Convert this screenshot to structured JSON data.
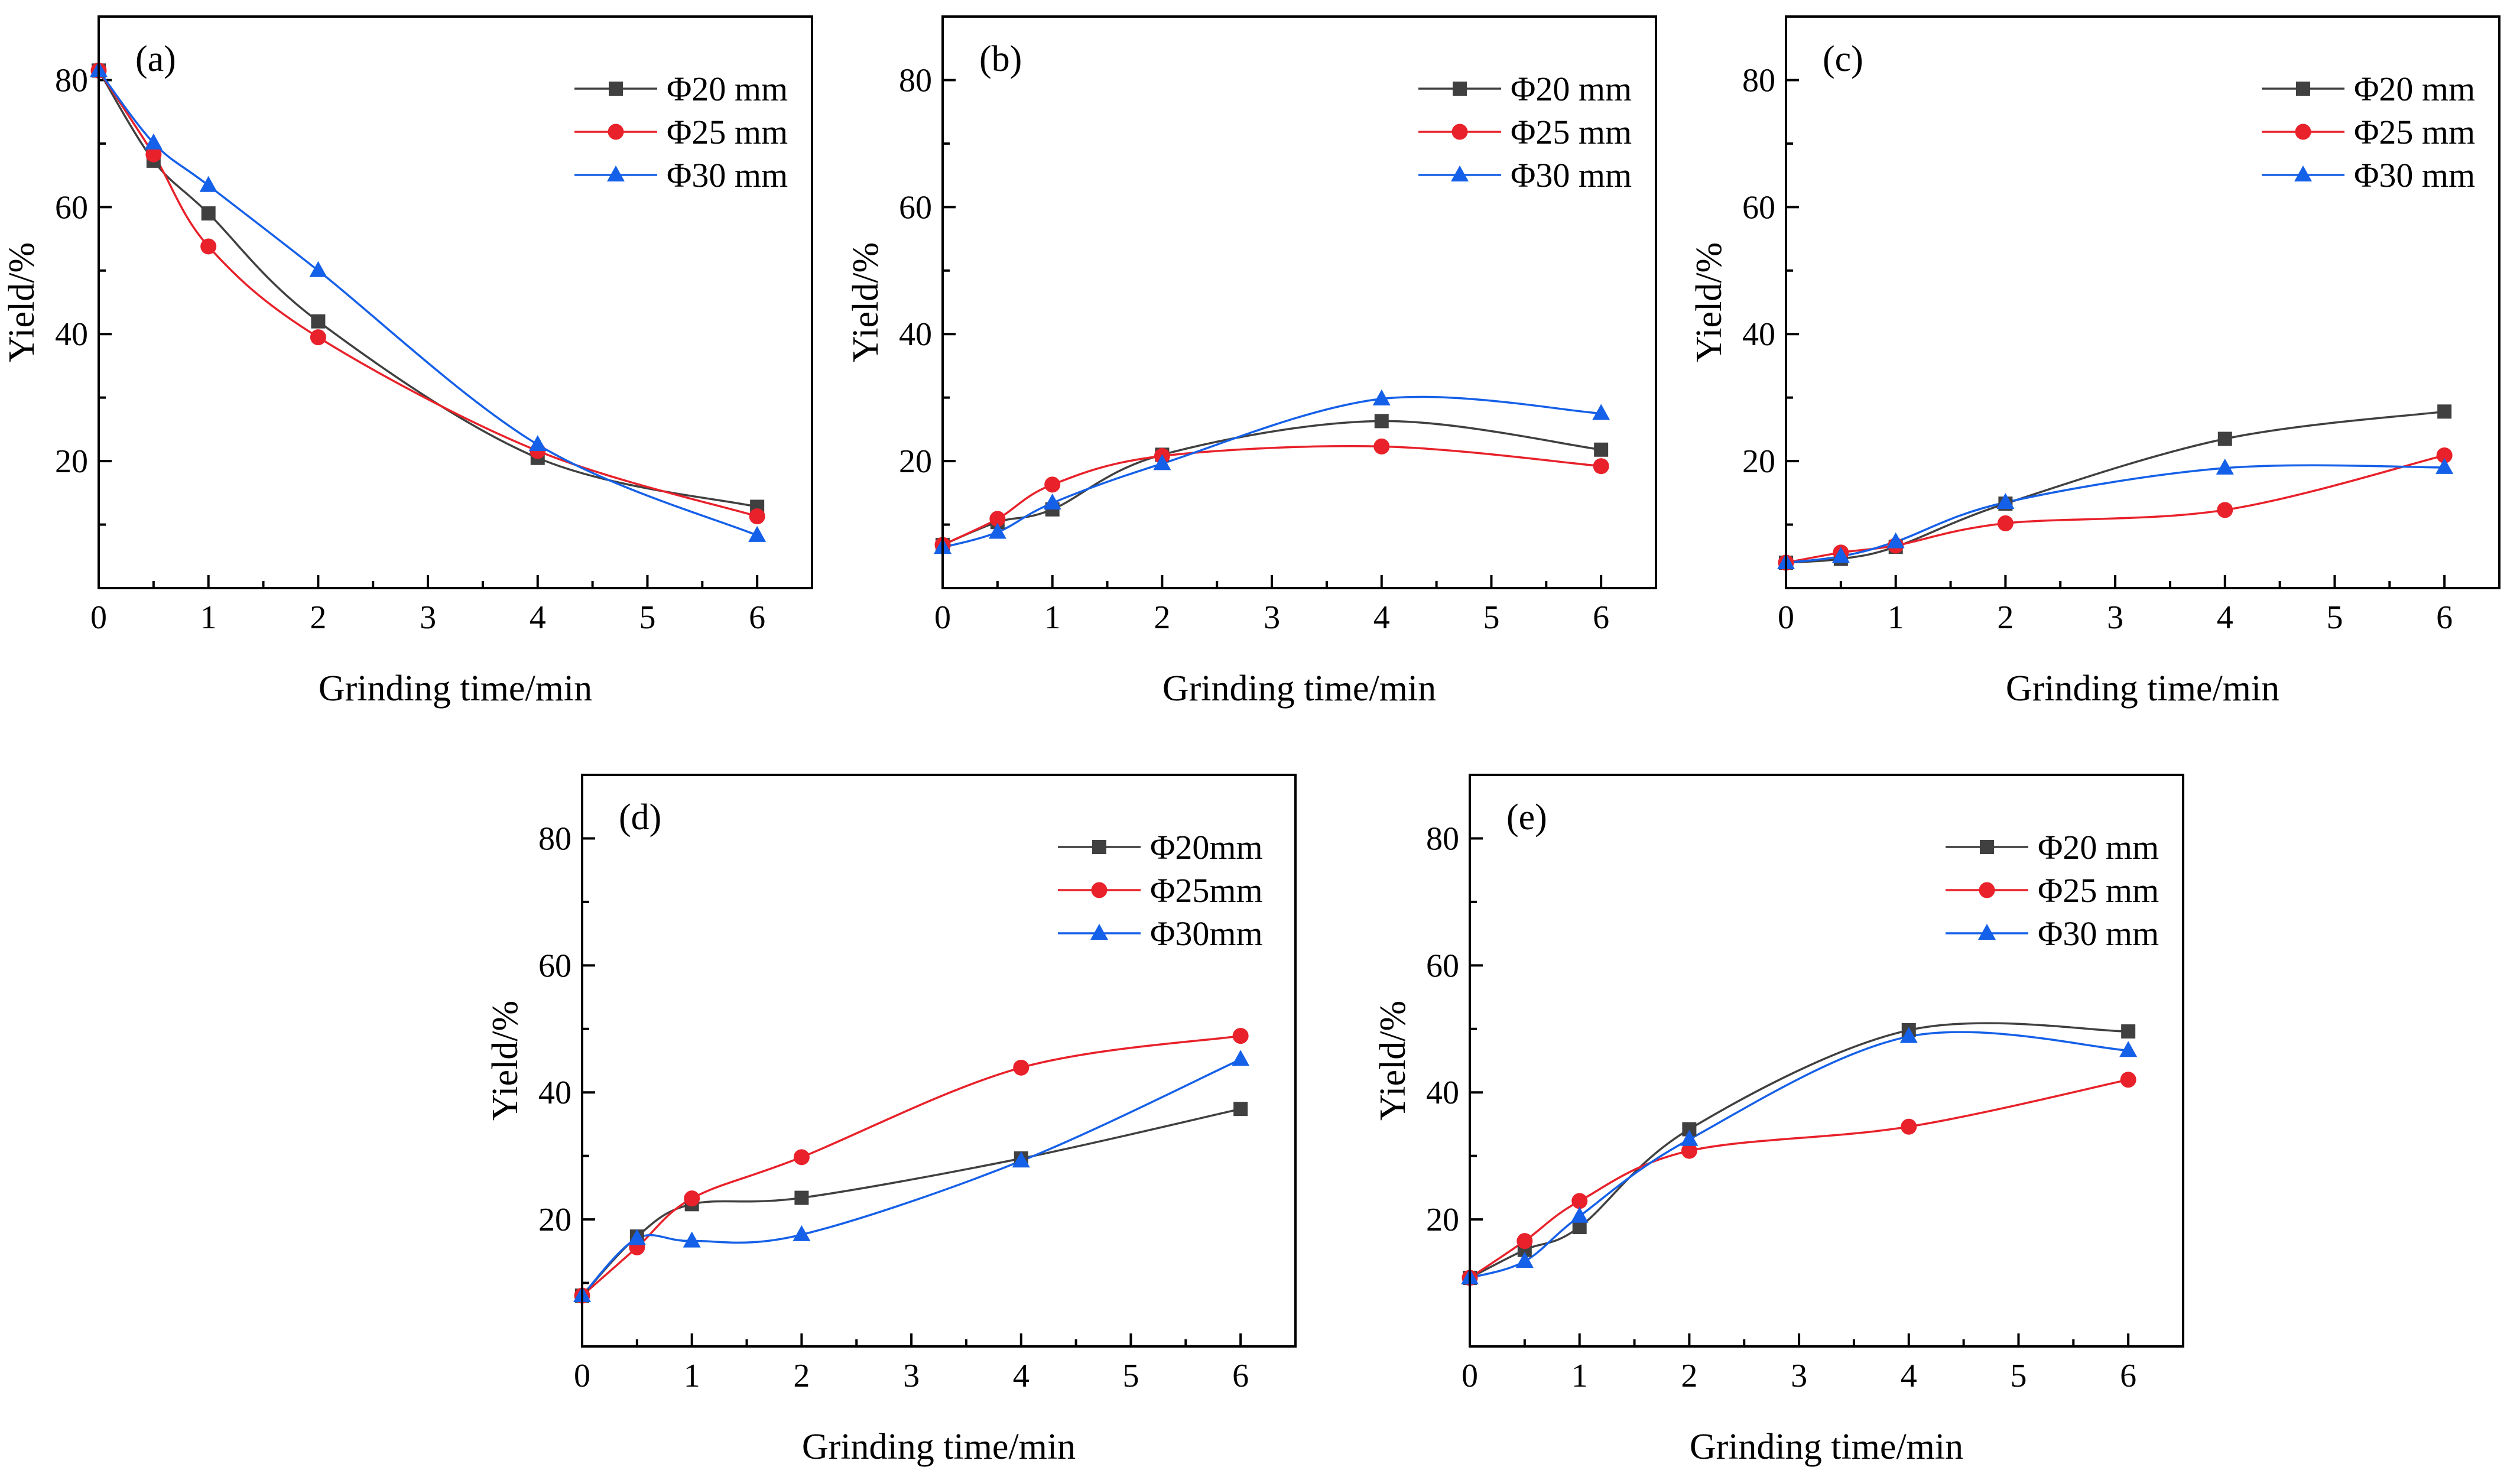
{
  "figure": {
    "description": "Yield versus grinding time for three ball diameters across five size fractions"
  },
  "series_styles": [
    {
      "key": "phi20",
      "color": "#404040",
      "marker": "square"
    },
    {
      "key": "phi25",
      "color": "#e8212a",
      "marker": "circle"
    },
    {
      "key": "phi30",
      "color": "#1560e8",
      "marker": "triangle"
    }
  ],
  "chart_data": [
    {
      "id": "a",
      "type": "line",
      "panel_label": "(a)",
      "xlabel": "Grinding time/min",
      "ylabel": "Yield/%",
      "xlim": [
        0,
        6.5
      ],
      "ylim": [
        0,
        90
      ],
      "xticks": [
        "0",
        "1",
        "2",
        "3",
        "4",
        "5",
        "6"
      ],
      "yticks": [
        "20",
        "40",
        "60",
        "80"
      ],
      "x": [
        0,
        0.5,
        1,
        2,
        4,
        6
      ],
      "legend_position": "top-right",
      "series": [
        {
          "name": "Φ20 mm",
          "values": [
            81.5,
            67.3,
            59.0,
            42.0,
            20.5,
            12.8
          ]
        },
        {
          "name": "Φ25 mm",
          "values": [
            81.5,
            68.3,
            53.8,
            39.5,
            21.6,
            11.3
          ]
        },
        {
          "name": "Φ30 mm",
          "values": [
            81.5,
            70.1,
            63.4,
            50.0,
            22.6,
            8.3
          ]
        }
      ]
    },
    {
      "id": "b",
      "type": "line",
      "panel_label": "(b)",
      "xlabel": "Grinding time/min",
      "ylabel": "Yield/%",
      "xlim": [
        0,
        6.5
      ],
      "ylim": [
        0,
        90
      ],
      "xticks": [
        "0",
        "1",
        "2",
        "3",
        "4",
        "5",
        "6"
      ],
      "yticks": [
        "20",
        "40",
        "60",
        "80"
      ],
      "x": [
        0,
        0.5,
        1,
        2,
        4,
        6
      ],
      "legend_position": "top-right",
      "series": [
        {
          "name": "Φ20 mm",
          "values": [
            6.8,
            10.4,
            12.4,
            21.0,
            26.3,
            21.8
          ]
        },
        {
          "name": "Φ25 mm",
          "values": [
            6.8,
            10.9,
            16.3,
            20.8,
            22.3,
            19.2
          ]
        },
        {
          "name": "Φ30 mm",
          "values": [
            6.4,
            8.8,
            13.4,
            19.6,
            29.8,
            27.5
          ]
        }
      ]
    },
    {
      "id": "c",
      "type": "line",
      "panel_label": "(c)",
      "xlabel": "Grinding time/min",
      "ylabel": "Yield/%",
      "xlim": [
        0,
        6.5
      ],
      "ylim": [
        0,
        90
      ],
      "xticks": [
        "0",
        "1",
        "2",
        "3",
        "4",
        "5",
        "6"
      ],
      "yticks": [
        "20",
        "40",
        "60",
        "80"
      ],
      "x": [
        0,
        0.5,
        1,
        2,
        4,
        6
      ],
      "legend_position": "top-right",
      "series": [
        {
          "name": "Φ20 mm",
          "values": [
            4.0,
            4.6,
            6.5,
            13.3,
            23.5,
            27.8
          ]
        },
        {
          "name": "Φ25 mm",
          "values": [
            4.0,
            5.6,
            6.7,
            10.2,
            12.3,
            20.9
          ]
        },
        {
          "name": "Φ30 mm",
          "values": [
            4.0,
            5.0,
            7.3,
            13.5,
            18.9,
            19.0
          ]
        }
      ]
    },
    {
      "id": "d",
      "type": "line",
      "panel_label": "(d)",
      "xlabel": "Grinding time/min",
      "ylabel": "Yield/%",
      "xlim": [
        0,
        6.5
      ],
      "ylim": [
        0,
        90
      ],
      "xticks": [
        "0",
        "1",
        "2",
        "3",
        "4",
        "5",
        "6"
      ],
      "yticks": [
        "20",
        "40",
        "60",
        "80"
      ],
      "x": [
        0,
        0.5,
        1,
        2,
        4,
        6
      ],
      "legend_position": "top-right",
      "series": [
        {
          "name": "Φ20mm",
          "values": [
            8.0,
            17.3,
            22.4,
            23.4,
            29.6,
            37.4
          ]
        },
        {
          "name": "Φ25mm",
          "values": [
            8.0,
            15.6,
            23.3,
            29.8,
            43.9,
            48.9
          ]
        },
        {
          "name": "Φ30mm",
          "values": [
            8.0,
            17.0,
            16.6,
            17.6,
            29.2,
            45.2
          ]
        }
      ]
    },
    {
      "id": "e",
      "type": "line",
      "panel_label": "(e)",
      "xlabel": "Grinding time/min",
      "ylabel": "Yield/%",
      "xlim": [
        0,
        6.5
      ],
      "ylim": [
        0,
        90
      ],
      "xticks": [
        "0",
        "1",
        "2",
        "3",
        "4",
        "5",
        "6"
      ],
      "yticks": [
        "20",
        "40",
        "60",
        "80"
      ],
      "x": [
        0,
        0.5,
        1,
        2,
        4,
        6
      ],
      "legend_position": "top-right",
      "series": [
        {
          "name": "Φ20 mm",
          "values": [
            10.8,
            15.2,
            18.8,
            34.2,
            49.8,
            49.6
          ]
        },
        {
          "name": "Φ25 mm",
          "values": [
            10.8,
            16.6,
            22.9,
            30.8,
            34.6,
            42.0
          ]
        },
        {
          "name": "Φ30 mm",
          "values": [
            10.8,
            13.4,
            20.5,
            32.6,
            48.8,
            46.6
          ]
        }
      ]
    }
  ]
}
